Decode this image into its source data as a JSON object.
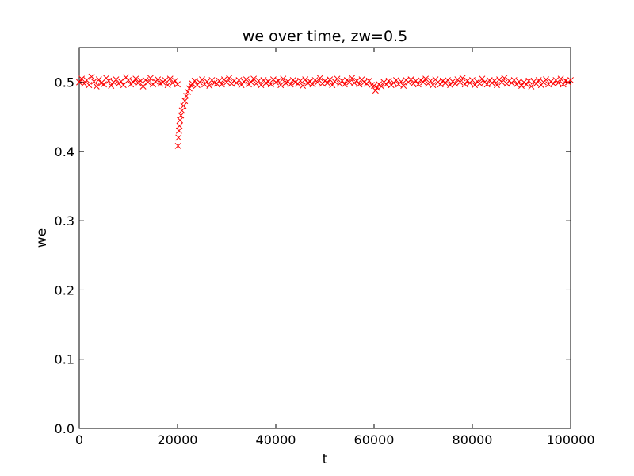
{
  "chart_data": {
    "type": "scatter",
    "title": "we over time, zw=0.5",
    "xlabel": "t",
    "ylabel": "we",
    "xlim": [
      0,
      100000
    ],
    "ylim": [
      0.0,
      0.55
    ],
    "x_ticks": [
      0,
      20000,
      40000,
      60000,
      80000,
      100000
    ],
    "x_tick_labels": [
      "0",
      "20000",
      "40000",
      "60000",
      "80000",
      "100000"
    ],
    "y_ticks": [
      0.0,
      0.1,
      0.2,
      0.3,
      0.4,
      0.5
    ],
    "y_tick_labels": [
      "0.0",
      "0.1",
      "0.2",
      "0.3",
      "0.4",
      "0.5"
    ],
    "grid": false,
    "marker": "x",
    "color": "#ff0000",
    "series": [
      {
        "points": [
          [
            0,
            0.5
          ],
          [
            500,
            0.505
          ],
          [
            1000,
            0.498
          ],
          [
            1500,
            0.503
          ],
          [
            2000,
            0.496
          ],
          [
            2500,
            0.508
          ],
          [
            3000,
            0.501
          ],
          [
            3500,
            0.494
          ],
          [
            4000,
            0.504
          ],
          [
            4500,
            0.499
          ],
          [
            5000,
            0.497
          ],
          [
            5500,
            0.506
          ],
          [
            6000,
            0.502
          ],
          [
            6500,
            0.495
          ],
          [
            7000,
            0.5
          ],
          [
            7500,
            0.504
          ],
          [
            8000,
            0.498
          ],
          [
            8500,
            0.501
          ],
          [
            9000,
            0.496
          ],
          [
            9500,
            0.507
          ],
          [
            10000,
            0.503
          ],
          [
            10500,
            0.497
          ],
          [
            11000,
            0.5
          ],
          [
            11500,
            0.505
          ],
          [
            12000,
            0.499
          ],
          [
            12500,
            0.502
          ],
          [
            13000,
            0.494
          ],
          [
            13500,
            0.503
          ],
          [
            14000,
            0.5
          ],
          [
            14500,
            0.506
          ],
          [
            15000,
            0.497
          ],
          [
            15500,
            0.501
          ],
          [
            16000,
            0.504
          ],
          [
            16500,
            0.498
          ],
          [
            17000,
            0.5
          ],
          [
            17500,
            0.503
          ],
          [
            18000,
            0.496
          ],
          [
            18500,
            0.505
          ],
          [
            19000,
            0.499
          ],
          [
            19500,
            0.502
          ],
          [
            20000,
            0.497
          ],
          [
            20100,
            0.408
          ],
          [
            20200,
            0.42
          ],
          [
            20300,
            0.43
          ],
          [
            20400,
            0.437
          ],
          [
            20500,
            0.445
          ],
          [
            20700,
            0.452
          ],
          [
            20900,
            0.459
          ],
          [
            21200,
            0.466
          ],
          [
            21500,
            0.473
          ],
          [
            21800,
            0.48
          ],
          [
            22100,
            0.486
          ],
          [
            22400,
            0.491
          ],
          [
            22800,
            0.495
          ],
          [
            23000,
            0.498
          ],
          [
            23500,
            0.502
          ],
          [
            24000,
            0.496
          ],
          [
            24500,
            0.5
          ],
          [
            25000,
            0.504
          ],
          [
            25500,
            0.497
          ],
          [
            26000,
            0.501
          ],
          [
            26500,
            0.495
          ],
          [
            27000,
            0.503
          ],
          [
            27500,
            0.499
          ],
          [
            28000,
            0.498
          ],
          [
            28500,
            0.502
          ],
          [
            29000,
            0.497
          ],
          [
            29500,
            0.504
          ],
          [
            30000,
            0.5
          ],
          [
            30500,
            0.506
          ],
          [
            31000,
            0.498
          ],
          [
            31500,
            0.502
          ],
          [
            32000,
            0.499
          ],
          [
            32500,
            0.503
          ],
          [
            33000,
            0.496
          ],
          [
            33500,
            0.501
          ],
          [
            34000,
            0.504
          ],
          [
            34500,
            0.497
          ],
          [
            35000,
            0.5
          ],
          [
            35500,
            0.505
          ],
          [
            36000,
            0.498
          ],
          [
            36500,
            0.502
          ],
          [
            37000,
            0.496
          ],
          [
            37500,
            0.503
          ],
          [
            38000,
            0.499
          ],
          [
            38500,
            0.501
          ],
          [
            39000,
            0.497
          ],
          [
            39500,
            0.504
          ],
          [
            40000,
            0.5
          ],
          [
            40500,
            0.502
          ],
          [
            41000,
            0.496
          ],
          [
            41500,
            0.505
          ],
          [
            42000,
            0.499
          ],
          [
            42500,
            0.501
          ],
          [
            43000,
            0.497
          ],
          [
            43500,
            0.503
          ],
          [
            44000,
            0.5
          ],
          [
            44500,
            0.498
          ],
          [
            45000,
            0.502
          ],
          [
            45500,
            0.495
          ],
          [
            46000,
            0.504
          ],
          [
            46500,
            0.499
          ],
          [
            47000,
            0.501
          ],
          [
            47500,
            0.497
          ],
          [
            48000,
            0.503
          ],
          [
            48500,
            0.5
          ],
          [
            49000,
            0.506
          ],
          [
            49500,
            0.498
          ],
          [
            50000,
            0.502
          ],
          [
            50500,
            0.499
          ],
          [
            51000,
            0.504
          ],
          [
            51500,
            0.496
          ],
          [
            52000,
            0.501
          ],
          [
            52500,
            0.505
          ],
          [
            53000,
            0.498
          ],
          [
            53500,
            0.502
          ],
          [
            54000,
            0.497
          ],
          [
            54500,
            0.503
          ],
          [
            55000,
            0.5
          ],
          [
            55500,
            0.506
          ],
          [
            56000,
            0.499
          ],
          [
            56500,
            0.502
          ],
          [
            57000,
            0.497
          ],
          [
            57500,
            0.504
          ],
          [
            58000,
            0.5
          ],
          [
            58500,
            0.498
          ],
          [
            59000,
            0.502
          ],
          [
            59500,
            0.496
          ],
          [
            60000,
            0.495
          ],
          [
            60300,
            0.488
          ],
          [
            60600,
            0.492
          ],
          [
            61000,
            0.497
          ],
          [
            61500,
            0.494
          ],
          [
            62000,
            0.5
          ],
          [
            62500,
            0.497
          ],
          [
            63000,
            0.502
          ],
          [
            63500,
            0.496
          ],
          [
            64000,
            0.499
          ],
          [
            64500,
            0.503
          ],
          [
            65000,
            0.497
          ],
          [
            65500,
            0.501
          ],
          [
            66000,
            0.495
          ],
          [
            66500,
            0.503
          ],
          [
            67000,
            0.5
          ],
          [
            67500,
            0.504
          ],
          [
            68000,
            0.498
          ],
          [
            68500,
            0.502
          ],
          [
            69000,
            0.497
          ],
          [
            69500,
            0.503
          ],
          [
            70000,
            0.5
          ],
          [
            70500,
            0.505
          ],
          [
            71000,
            0.498
          ],
          [
            71500,
            0.502
          ],
          [
            72000,
            0.496
          ],
          [
            72500,
            0.504
          ],
          [
            73000,
            0.5
          ],
          [
            73500,
            0.497
          ],
          [
            74000,
            0.502
          ],
          [
            74500,
            0.499
          ],
          [
            75000,
            0.503
          ],
          [
            75500,
            0.496
          ],
          [
            76000,
            0.501
          ],
          [
            76500,
            0.498
          ],
          [
            77000,
            0.504
          ],
          [
            77500,
            0.5
          ],
          [
            78000,
            0.506
          ],
          [
            78500,
            0.497
          ],
          [
            79000,
            0.502
          ],
          [
            79500,
            0.499
          ],
          [
            80000,
            0.503
          ],
          [
            80500,
            0.496
          ],
          [
            81000,
            0.501
          ],
          [
            81500,
            0.498
          ],
          [
            82000,
            0.505
          ],
          [
            82500,
            0.5
          ],
          [
            83000,
            0.497
          ],
          [
            83500,
            0.503
          ],
          [
            84000,
            0.499
          ],
          [
            84500,
            0.502
          ],
          [
            85000,
            0.496
          ],
          [
            85500,
            0.504
          ],
          [
            86000,
            0.5
          ],
          [
            86500,
            0.506
          ],
          [
            87000,
            0.498
          ],
          [
            87500,
            0.502
          ],
          [
            88000,
            0.499
          ],
          [
            88500,
            0.503
          ],
          [
            89000,
            0.497
          ],
          [
            89500,
            0.501
          ],
          [
            90000,
            0.495
          ],
          [
            90500,
            0.5
          ],
          [
            91000,
            0.497
          ],
          [
            91500,
            0.502
          ],
          [
            92000,
            0.494
          ],
          [
            92500,
            0.501
          ],
          [
            93000,
            0.498
          ],
          [
            93500,
            0.503
          ],
          [
            94000,
            0.496
          ],
          [
            94500,
            0.5
          ],
          [
            95000,
            0.504
          ],
          [
            95500,
            0.497
          ],
          [
            96000,
            0.501
          ],
          [
            96500,
            0.498
          ],
          [
            97000,
            0.503
          ],
          [
            97500,
            0.499
          ],
          [
            98000,
            0.505
          ],
          [
            98500,
            0.497
          ],
          [
            99000,
            0.502
          ],
          [
            99500,
            0.5
          ],
          [
            100000,
            0.503
          ]
        ]
      }
    ]
  }
}
